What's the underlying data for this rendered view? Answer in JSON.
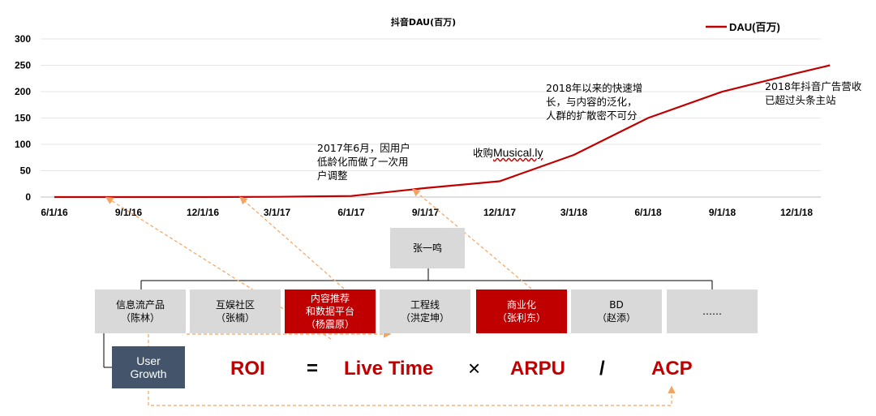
{
  "chart_data": {
    "type": "line",
    "title": "抖音DAU(百万)",
    "xlabel": "",
    "ylabel": "",
    "ylim": [
      0,
      300
    ],
    "yticks": [
      "300",
      "250",
      "200",
      "150",
      "100",
      "50",
      "0"
    ],
    "categories": [
      "6/1/16",
      "9/1/16",
      "12/1/16",
      "3/1/17",
      "6/1/17",
      "9/1/17",
      "12/1/17",
      "3/1/18",
      "6/1/18",
      "9/1/18",
      "12/1/18"
    ],
    "x": [
      0,
      1,
      2,
      3,
      4,
      5,
      6,
      7,
      8,
      9,
      10,
      10.45
    ],
    "series": [
      {
        "name": "DAU(百万)",
        "color": "#c00000",
        "values": [
          0,
          0,
          0,
          0.5,
          2,
          17,
          30,
          80,
          150,
          200,
          235,
          250
        ]
      }
    ],
    "grid": true,
    "legend_position": "top-right"
  },
  "annotations": {
    "jun2017": "2017年6月，因用户\n低龄化而做了一次用\n户调整",
    "musical_prefix": "收购",
    "musical_link": "Musical.ly",
    "growth2018": "2018年以来的快速增\n长，与内容的泛化，\n人群的扩散密不可分",
    "ads2018": "2018年抖音广告营收\n已超过头条主站"
  },
  "org": {
    "root": "张一鸣",
    "departments": [
      {
        "label": "信息流产品\n（陈林）",
        "style": "gray"
      },
      {
        "label": "互娱社区\n（张楠）",
        "style": "gray"
      },
      {
        "label": "内容推荐\n和数据平台\n（杨震原）",
        "style": "red"
      },
      {
        "label": "工程线\n（洪定坤）",
        "style": "gray"
      },
      {
        "label": "商业化\n（张利东）",
        "style": "red"
      },
      {
        "label": "BD\n（赵添）",
        "style": "gray"
      },
      {
        "label": "……",
        "style": "gray"
      }
    ],
    "user_growth": "User\nGrowth"
  },
  "formula": {
    "roi": "ROI",
    "eq": "=",
    "live_time": "Live Time",
    "times": "×",
    "arpu": "ARPU",
    "div": "/",
    "acp": "ACP"
  },
  "colors": {
    "accent": "#c00000",
    "box_gray": "#d9d9d9",
    "navy": "#44546a",
    "arrow": "#f4b183"
  }
}
